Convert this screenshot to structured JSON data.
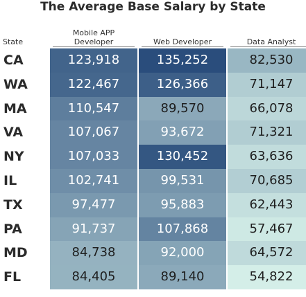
{
  "chart_data": {
    "type": "heatmap",
    "title": "The Average Base Salary by State",
    "row_header": "State",
    "rows": [
      "CA",
      "WA",
      "MA",
      "VA",
      "NY",
      "IL",
      "TX",
      "PA",
      "MD",
      "FL"
    ],
    "columns": [
      "Mobile APP\nDeveloper",
      "Web Developer",
      "Data Analyst"
    ],
    "values": [
      [
        123918,
        135252,
        82530
      ],
      [
        122467,
        126366,
        71147
      ],
      [
        110547,
        89570,
        66078
      ],
      [
        107067,
        93672,
        71321
      ],
      [
        107033,
        130452,
        63636
      ],
      [
        102741,
        99531,
        70685
      ],
      [
        97477,
        95883,
        62443
      ],
      [
        91737,
        107868,
        57467
      ],
      [
        84738,
        92000,
        64572
      ],
      [
        84405,
        89140,
        54822
      ]
    ],
    "display_values": [
      [
        "123,918",
        "135,252",
        "82,530"
      ],
      [
        "122,467",
        "126,366",
        "71,147"
      ],
      [
        "110,547",
        "89,570",
        "66,078"
      ],
      [
        "107,067",
        "93,672",
        "71,321"
      ],
      [
        "107,033",
        "130,452",
        "63,636"
      ],
      [
        "102,741",
        "99,531",
        "70,685"
      ],
      [
        "97,477",
        "95,883",
        "62,443"
      ],
      [
        "91,737",
        "107,868",
        "57,467"
      ],
      [
        "84,738",
        "92,000",
        "64,572"
      ],
      [
        "84,405",
        "89,140",
        "54,822"
      ]
    ],
    "color_scale": {
      "low": "#d4eee8",
      "high": "#2a4d7c",
      "range": [
        54822,
        135252
      ]
    }
  }
}
